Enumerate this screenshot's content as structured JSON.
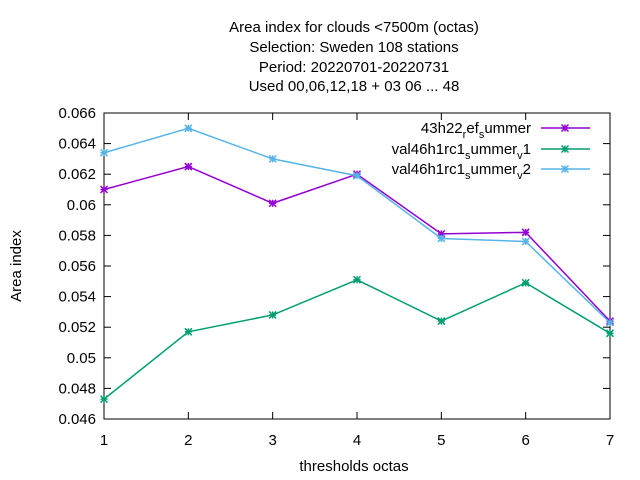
{
  "chart_data": {
    "type": "line",
    "title_lines": [
      "Area index  for clouds <7500m (octas)",
      "Selection: Sweden    108 stations",
      "Period: 20220701-20220731",
      "Used  00,06,12,18  + 03 06 ... 48"
    ],
    "xlabel": "thresholds octas",
    "ylabel": "Area index",
    "x": [
      1,
      2,
      3,
      4,
      5,
      6,
      7
    ],
    "xlim": [
      1,
      7
    ],
    "ylim": [
      0.046,
      0.066
    ],
    "x_ticks": [
      "1",
      "2",
      "3",
      "4",
      "5",
      "6",
      "7"
    ],
    "y_ticks": [
      "0.046",
      "0.048",
      "0.05",
      "0.052",
      "0.054",
      "0.056",
      "0.058",
      "0.06",
      "0.062",
      "0.064",
      "0.066"
    ],
    "y_tick_values": [
      0.046,
      0.048,
      0.05,
      0.052,
      0.054,
      0.056,
      0.058,
      0.06,
      0.062,
      0.064,
      0.066
    ],
    "grid": false,
    "legend_position": "top-right",
    "series": [
      {
        "name_base": "43h22",
        "name_sub1": "r",
        "name_mid": "ef",
        "name_sub2": "s",
        "name_end": "ummer",
        "color": "#9400d3",
        "values": [
          0.061,
          0.0625,
          0.0601,
          0.062,
          0.0581,
          0.0582,
          0.0524
        ]
      },
      {
        "name_base": "val46h1rc1",
        "name_sub1": "s",
        "name_mid": "ummer",
        "name_sub2": "v",
        "name_end": "1",
        "color": "#009e73",
        "values": [
          0.0473,
          0.0517,
          0.0528,
          0.0551,
          0.0524,
          0.0549,
          0.0516
        ]
      },
      {
        "name_base": "val46h1rc1",
        "name_sub1": "s",
        "name_mid": "ummer",
        "name_sub2": "v",
        "name_end": "2",
        "color": "#56b4e9",
        "values": [
          0.0634,
          0.065,
          0.063,
          0.0619,
          0.0578,
          0.0576,
          0.0523
        ]
      }
    ]
  }
}
